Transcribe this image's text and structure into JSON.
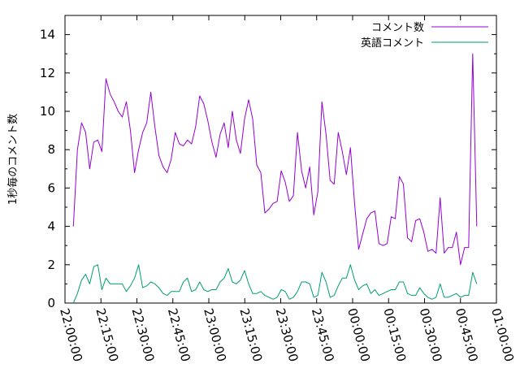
{
  "chart_data": {
    "type": "line",
    "title": "",
    "xlabel": "",
    "ylabel": "1秒毎のコメント数",
    "xlim": [
      "22:00:00",
      "01:00:00"
    ],
    "ylim": [
      0,
      15
    ],
    "x_ticks": [
      "22:00:00",
      "22:15:00",
      "22:30:00",
      "22:45:00",
      "23:00:00",
      "23:15:00",
      "23:30:00",
      "23:45:00",
      "00:00:00",
      "00:15:00",
      "00:30:00",
      "00:45:00",
      "01:00:00"
    ],
    "y_ticks": [
      0,
      2,
      4,
      6,
      8,
      10,
      12,
      14
    ],
    "grid": false,
    "legend_position": "top-right",
    "x_minutes_offset_from_22_00": [
      1,
      2,
      3,
      4,
      5,
      6,
      7,
      8,
      9,
      10,
      11,
      12,
      13,
      14,
      15,
      16,
      17,
      18,
      19,
      20,
      21,
      22,
      23,
      24,
      25,
      26,
      27,
      28,
      29,
      30,
      31,
      32,
      33,
      34,
      35,
      36,
      37,
      38,
      39,
      40,
      41,
      42,
      43,
      44,
      45,
      46,
      47,
      48,
      49,
      50,
      51,
      52,
      53,
      54,
      55,
      56,
      57,
      58,
      59,
      60,
      61,
      62,
      63,
      64,
      65,
      66,
      67,
      68,
      69,
      70,
      71,
      72,
      73,
      74,
      75,
      76,
      77,
      78,
      79,
      80,
      81,
      82,
      83,
      84,
      85,
      86,
      87,
      88,
      89,
      90,
      91,
      92,
      93,
      94,
      95,
      96,
      97,
      98,
      99,
      100,
      101,
      102,
      103,
      104,
      105,
      106,
      107,
      108,
      109,
      110,
      111,
      112,
      113,
      114,
      115,
      116,
      117,
      118,
      119,
      120,
      121,
      122,
      123,
      124,
      125,
      126,
      127,
      128,
      129,
      130,
      131,
      132,
      133,
      134,
      135,
      136,
      137,
      138,
      139,
      140,
      141,
      142,
      143,
      144,
      145,
      146,
      147,
      148,
      149,
      150,
      151,
      152,
      153,
      154,
      155,
      156,
      157,
      158,
      159,
      160,
      161,
      162,
      163,
      164,
      165,
      166,
      167,
      168
    ],
    "series": [
      {
        "name": "コメント数",
        "color": "#9400d3",
        "values": [
          4.0,
          8.0,
          9.4,
          8.9,
          7.0,
          8.4,
          8.5,
          7.9,
          11.7,
          10.9,
          10.5,
          10.0,
          9.7,
          10.5,
          9.0,
          6.8,
          8.0,
          8.9,
          9.4,
          11.0,
          9.2,
          7.7,
          7.1,
          6.8,
          7.5,
          8.9,
          8.3,
          8.2,
          8.5,
          8.3,
          9.2,
          10.8,
          10.4,
          9.5,
          8.4,
          7.6,
          8.8,
          9.4,
          8.1,
          10.0,
          8.5,
          7.8,
          9.6,
          10.6,
          9.6,
          7.2,
          6.8,
          4.7,
          4.9,
          5.2,
          5.3,
          6.9,
          6.3,
          5.3,
          5.6,
          8.9,
          6.9,
          6.0,
          7.1,
          4.6,
          5.8,
          10.5,
          8.8,
          6.4,
          6.2,
          8.9,
          7.9,
          6.7,
          8.1,
          5.2,
          2.8,
          3.6,
          4.4,
          4.7,
          4.8,
          3.1,
          3.0,
          3.1,
          4.5,
          4.4,
          6.6,
          6.2,
          3.4,
          3.2,
          4.3,
          4.4,
          3.7,
          2.7,
          2.8,
          2.6,
          5.5,
          2.6,
          2.9,
          2.9,
          3.7,
          2.0,
          2.9,
          2.9,
          13.0,
          4.0
        ],
        "x_index_step": 1.7
      },
      {
        "name": "英語コメント",
        "color": "#009e73",
        "values": [
          0.0,
          0.5,
          1.2,
          1.5,
          1.0,
          1.9,
          2.0,
          0.7,
          1.3,
          1.0,
          1.0,
          1.0,
          1.0,
          0.6,
          0.9,
          1.3,
          2.0,
          0.8,
          0.9,
          1.1,
          1.0,
          0.8,
          0.5,
          0.4,
          0.6,
          0.6,
          0.6,
          1.1,
          1.3,
          0.6,
          0.7,
          1.1,
          0.7,
          0.6,
          0.7,
          0.7,
          1.1,
          1.3,
          1.8,
          1.1,
          1.0,
          1.2,
          1.7,
          1.0,
          0.5,
          0.5,
          0.6,
          0.4,
          0.3,
          0.2,
          0.3,
          0.7,
          0.6,
          0.2,
          0.3,
          0.6,
          1.1,
          1.1,
          1.0,
          0.3,
          0.4,
          1.6,
          1.1,
          0.3,
          0.4,
          0.9,
          1.3,
          1.3,
          2.0,
          1.2,
          0.7,
          0.9,
          1.0,
          0.5,
          0.7,
          0.4,
          0.5,
          0.6,
          0.7,
          0.7,
          1.1,
          1.1,
          0.5,
          0.4,
          0.4,
          0.8,
          0.5,
          0.3,
          0.2,
          0.3,
          1.0,
          0.3,
          0.3,
          0.4,
          0.5,
          0.3,
          0.4,
          0.4,
          1.6,
          1.0
        ],
        "x_index_step": 1.7
      }
    ]
  }
}
